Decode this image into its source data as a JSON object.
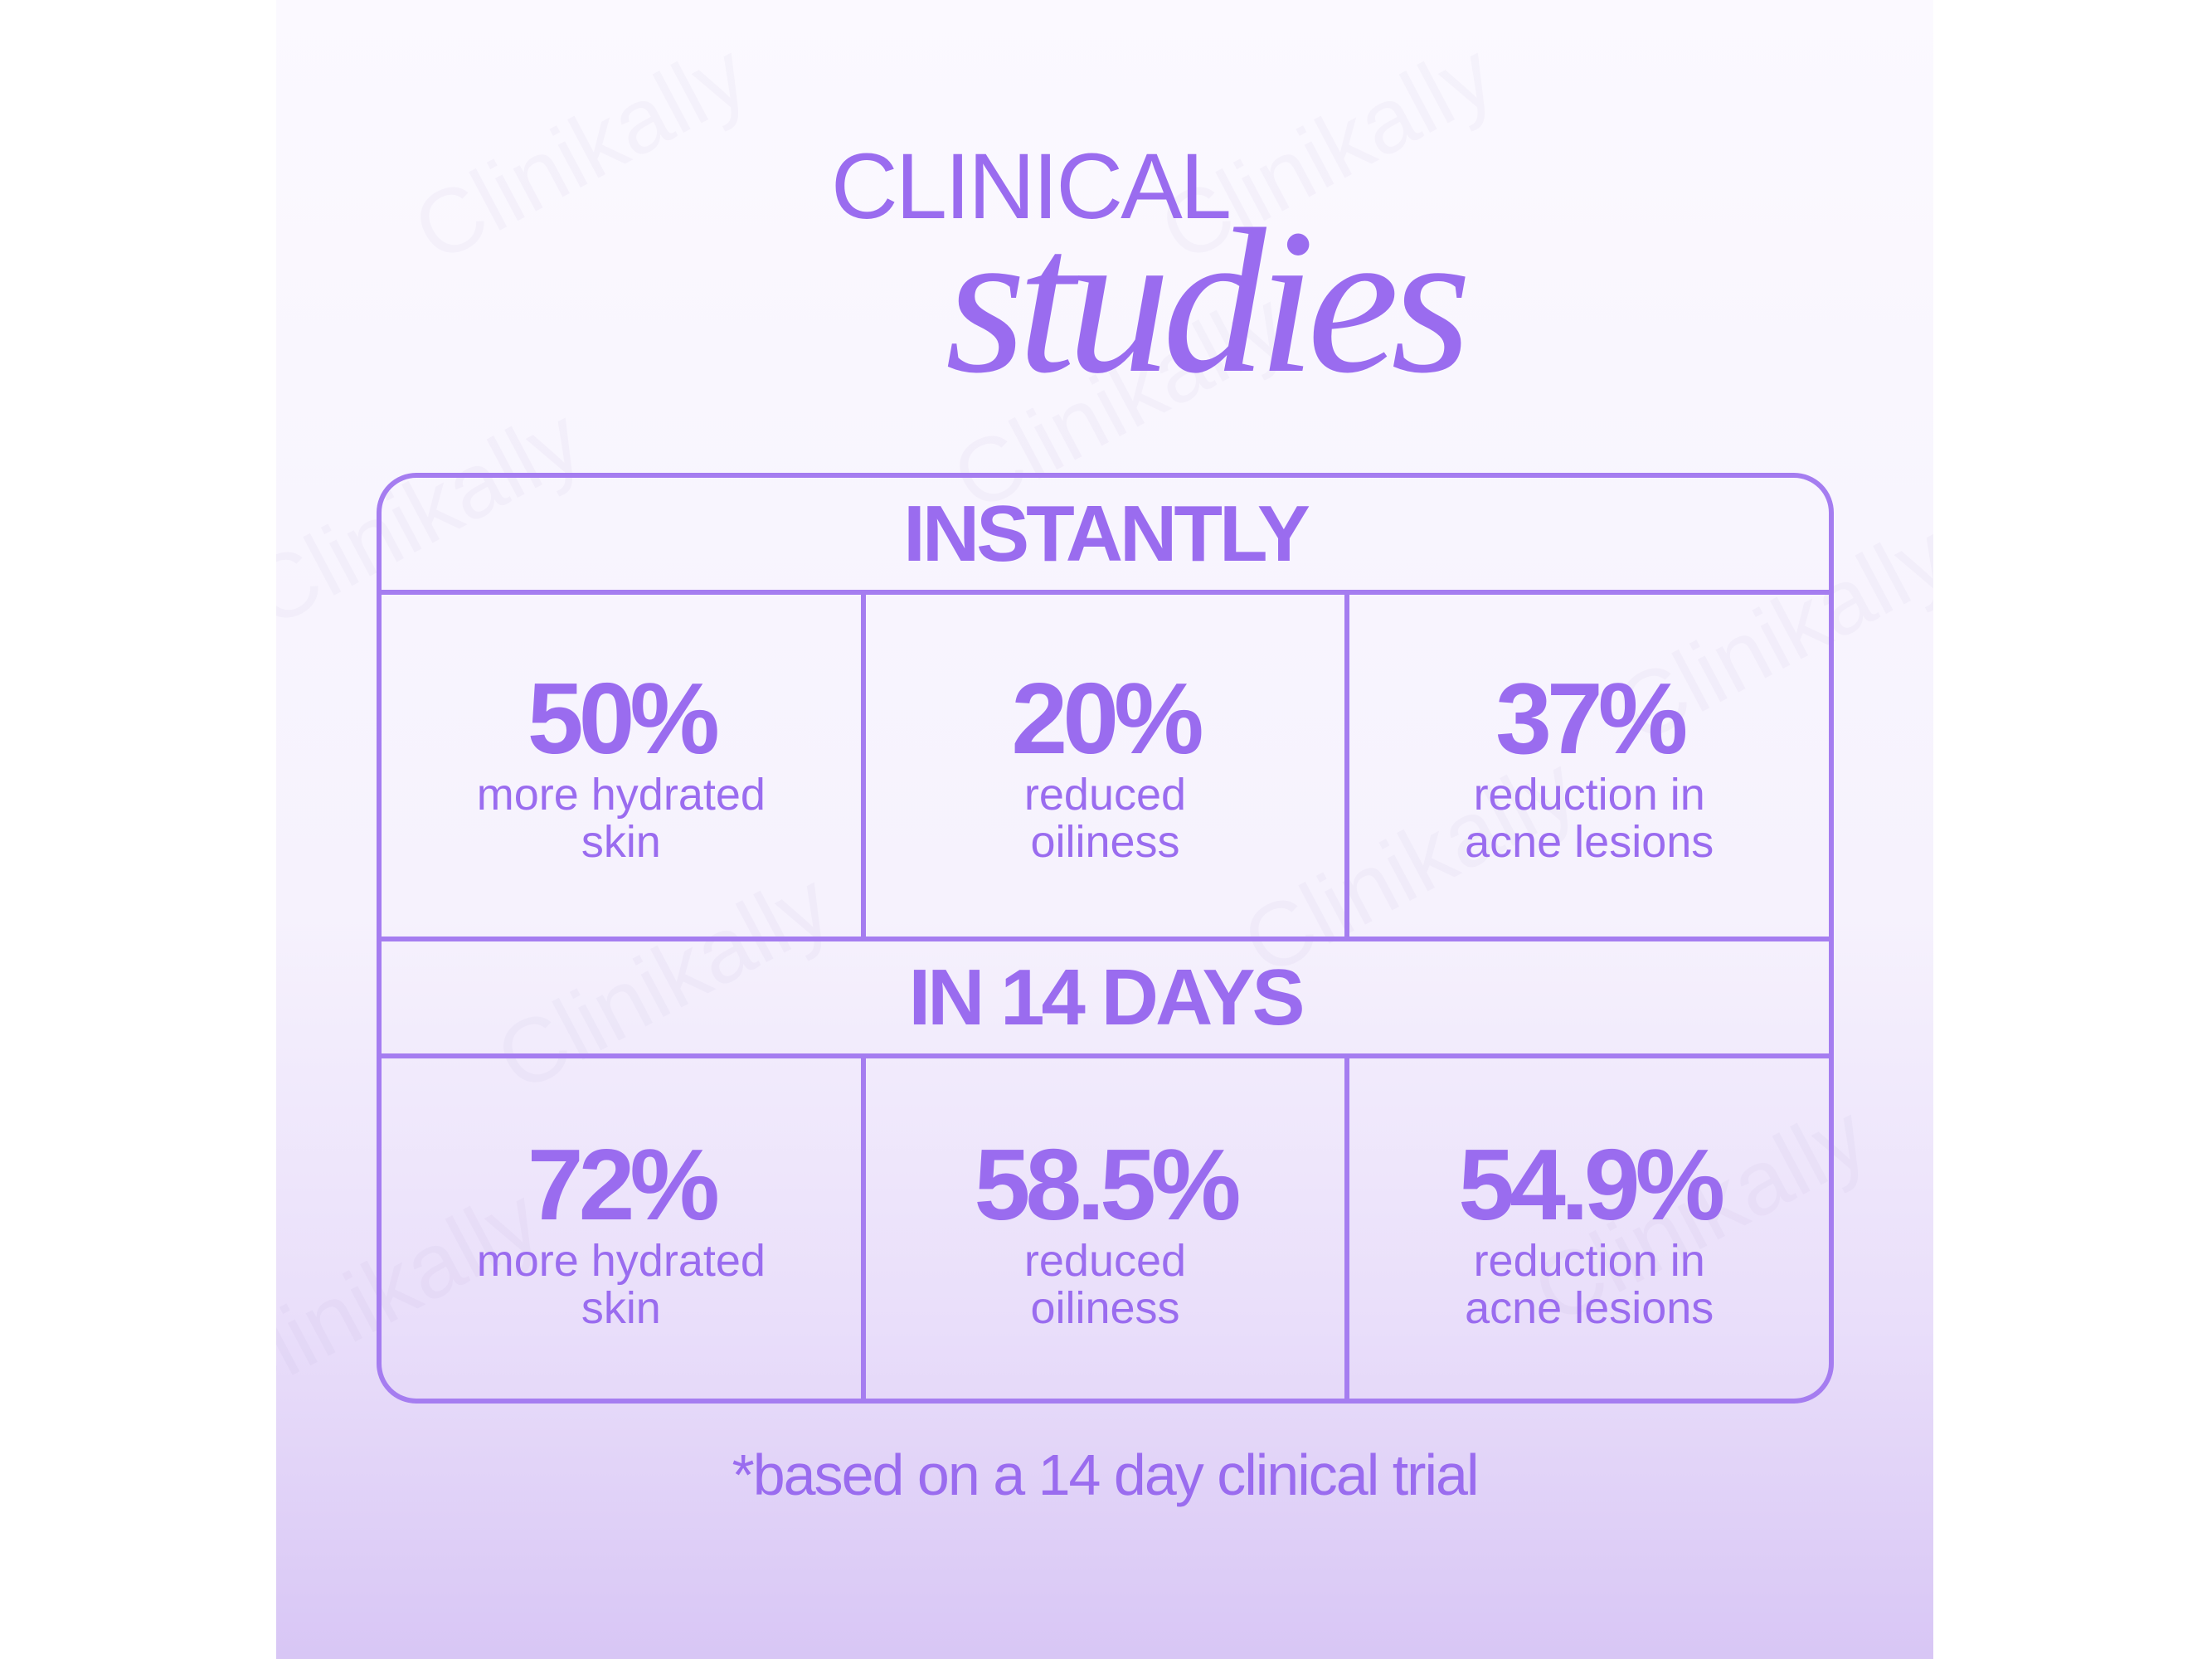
{
  "watermark": "Clinikally",
  "title": "CLINICAL",
  "subtitle": "studies",
  "sections": [
    {
      "heading": "INSTANTLY",
      "stats": [
        {
          "value": "50%",
          "label": "more hydrated skin"
        },
        {
          "value": "20%",
          "label": "reduced oiliness"
        },
        {
          "value": "37%",
          "label": "reduction in acne lesions"
        }
      ]
    },
    {
      "heading": "IN 14 DAYS",
      "stats": [
        {
          "value": "72%",
          "label": "more hydrated skin"
        },
        {
          "value": "58.5%",
          "label": "reduced oiliness"
        },
        {
          "value": "54.9%",
          "label": "reduction in acne lesions"
        }
      ]
    }
  ],
  "footnote": "*based on a 14 day clinical trial"
}
